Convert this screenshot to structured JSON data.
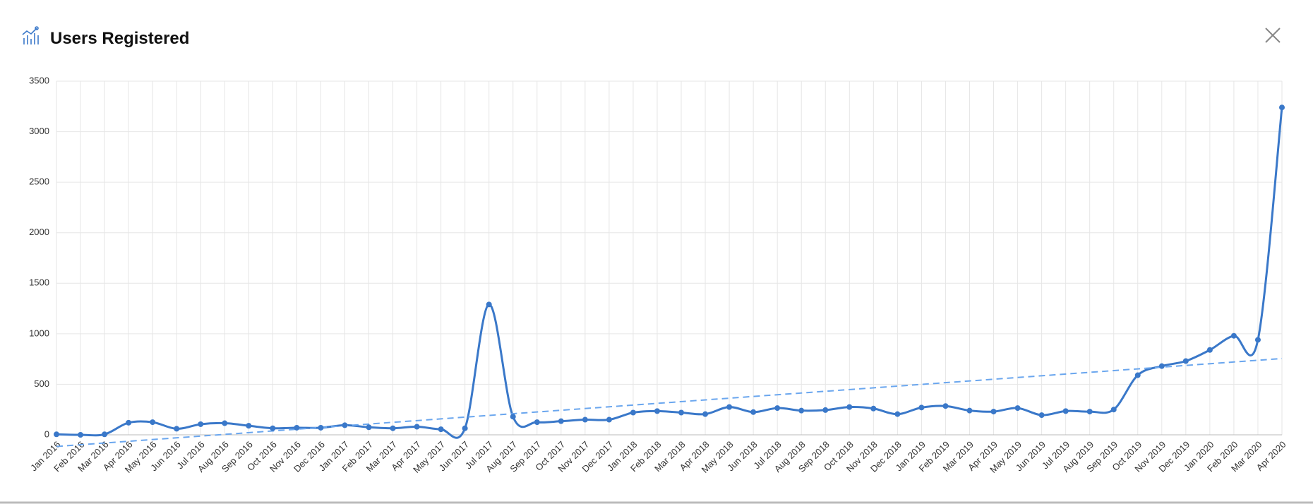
{
  "chart_data": {
    "type": "line",
    "title": "Users Registered",
    "categories": [
      "Jan 2016",
      "Feb 2016",
      "Mar 2016",
      "Apr 2016",
      "May 2016",
      "Jun 2016",
      "Jul 2016",
      "Aug 2016",
      "Sep 2016",
      "Oct 2016",
      "Nov 2016",
      "Dec 2016",
      "Jan 2017",
      "Feb 2017",
      "Mar 2017",
      "Apr 2017",
      "May 2017",
      "Jun 2017",
      "Jul 2017",
      "Aug 2017",
      "Sep 2017",
      "Oct 2017",
      "Nov 2017",
      "Dec 2017",
      "Jan 2018",
      "Feb 2018",
      "Mar 2018",
      "Apr 2018",
      "May 2018",
      "Jun 2018",
      "Jul 2018",
      "Aug 2018",
      "Sep 2018",
      "Oct 2018",
      "Nov 2018",
      "Dec 2018",
      "Jan 2019",
      "Feb 2019",
      "Mar 2019",
      "Apr 2019",
      "May 2019",
      "Jun 2019",
      "Jul 2019",
      "Aug 2019",
      "Sep 2019",
      "Oct 2019",
      "Nov 2019",
      "Dec 2019",
      "Jan 2020",
      "Feb 2020",
      "Mar 2020",
      "Apr 2020"
    ],
    "values": [
      5,
      0,
      5,
      120,
      125,
      60,
      105,
      115,
      90,
      65,
      70,
      70,
      95,
      75,
      65,
      80,
      55,
      65,
      1290,
      180,
      125,
      135,
      150,
      150,
      220,
      235,
      220,
      205,
      275,
      225,
      265,
      240,
      245,
      275,
      260,
      205,
      270,
      285,
      240,
      230,
      265,
      195,
      235,
      230,
      250,
      590,
      680,
      730,
      840,
      980,
      940,
      3240
    ],
    "color": "#3a78c9",
    "trendline": {
      "values": [
        -115,
        755
      ],
      "color": "#6aa6ee"
    },
    "ylim": [
      0,
      3500
    ],
    "yticks": [
      0,
      500,
      1000,
      1500,
      2000,
      2500,
      3000,
      3500
    ],
    "grid": true
  }
}
